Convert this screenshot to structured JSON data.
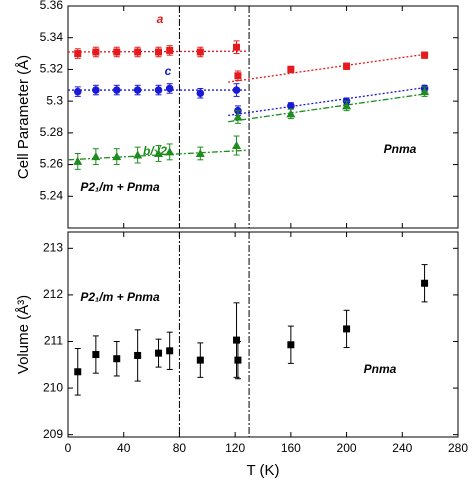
{
  "chart_data": [
    {
      "type": "scatter",
      "ylabel": "Cell Parameter (Å)",
      "xlim": [
        0,
        280
      ],
      "xticks": [
        0,
        40,
        80,
        120,
        160,
        200,
        240,
        280
      ],
      "ylim": [
        5.22,
        5.36
      ],
      "yticks": [
        5.24,
        5.26,
        5.28,
        5.3,
        5.32,
        5.34,
        5.36
      ],
      "vlines": [
        80,
        130
      ],
      "series": [
        {
          "name": "a",
          "color": "#e41a1c",
          "marker": "square",
          "x": [
            7,
            20,
            35,
            50,
            65,
            73,
            95,
            121,
            122,
            160,
            200,
            256
          ],
          "values": [
            5.33,
            5.331,
            5.331,
            5.331,
            5.331,
            5.332,
            5.331,
            5.334,
            5.316,
            5.32,
            5.322,
            5.329
          ],
          "errors": [
            0.003,
            0.003,
            0.003,
            0.003,
            0.003,
            0.003,
            0.003,
            0.004,
            0.003,
            0.002,
            0.002,
            0.002
          ]
        },
        {
          "name": "c",
          "color": "#1a1ad6",
          "marker": "circle",
          "x": [
            7,
            20,
            35,
            50,
            65,
            73,
            95,
            121,
            122,
            160,
            200,
            256
          ],
          "values": [
            5.306,
            5.307,
            5.307,
            5.307,
            5.307,
            5.308,
            5.305,
            5.307,
            5.294,
            5.297,
            5.3,
            5.308
          ],
          "errors": [
            0.003,
            0.003,
            0.003,
            0.003,
            0.003,
            0.003,
            0.003,
            0.004,
            0.003,
            0.002,
            0.002,
            0.002
          ]
        },
        {
          "name": "b/√2",
          "color": "#1e8c1e",
          "marker": "triangle",
          "x": [
            7,
            20,
            35,
            50,
            65,
            73,
            95,
            121,
            122,
            160,
            200,
            256
          ],
          "values": [
            5.262,
            5.265,
            5.265,
            5.266,
            5.267,
            5.268,
            5.267,
            5.272,
            5.29,
            5.292,
            5.297,
            5.306
          ],
          "errors": [
            0.005,
            0.005,
            0.005,
            0.005,
            0.005,
            0.005,
            0.004,
            0.006,
            0.004,
            0.003,
            0.003,
            0.003
          ]
        }
      ],
      "fits": [
        {
          "color": "#e41a1c",
          "dash": "2 2",
          "x": [
            0,
            128
          ],
          "values": [
            5.331,
            5.3315
          ]
        },
        {
          "color": "#e41a1c",
          "dash": "2 2",
          "x": [
            115,
            260
          ],
          "values": [
            5.312,
            5.33
          ]
        },
        {
          "color": "#1a1ad6",
          "dash": "2 2",
          "x": [
            0,
            128
          ],
          "values": [
            5.307,
            5.307
          ]
        },
        {
          "color": "#1a1ad6",
          "dash": "2 2",
          "x": [
            115,
            260
          ],
          "values": [
            5.291,
            5.309
          ]
        },
        {
          "color": "#1e8c1e",
          "dash": "6 2 2 2",
          "x": [
            0,
            128
          ],
          "values": [
            5.263,
            5.269
          ]
        },
        {
          "color": "#1e8c1e",
          "dash": "6 2 2 2",
          "x": [
            115,
            260
          ],
          "values": [
            5.287,
            5.305
          ]
        }
      ],
      "annotations": [
        "P2₁/m + Pnma",
        "Pnma"
      ]
    },
    {
      "type": "scatter",
      "xlabel": "T (K)",
      "ylabel": "Volume (Å³)",
      "xlim": [
        0,
        280
      ],
      "xticks": [
        0,
        40,
        80,
        120,
        160,
        200,
        240,
        280
      ],
      "ylim": [
        208.95,
        213.35
      ],
      "yticks": [
        209,
        210,
        211,
        212,
        213
      ],
      "vlines": [
        80,
        130
      ],
      "series": [
        {
          "color": "#000000",
          "marker": "square",
          "x": [
            7,
            20,
            35,
            50,
            65,
            73,
            95,
            121,
            122,
            160,
            200,
            256
          ],
          "values": [
            210.35,
            210.72,
            210.63,
            210.7,
            210.75,
            210.8,
            210.6,
            211.03,
            210.6,
            210.93,
            211.27,
            212.25
          ],
          "errors": [
            0.5,
            0.4,
            0.37,
            0.55,
            0.3,
            0.4,
            0.37,
            0.8,
            0.4,
            0.4,
            0.4,
            0.4
          ]
        }
      ],
      "annotations": [
        "P2₁/m + Pnma",
        "Pnma"
      ]
    }
  ]
}
